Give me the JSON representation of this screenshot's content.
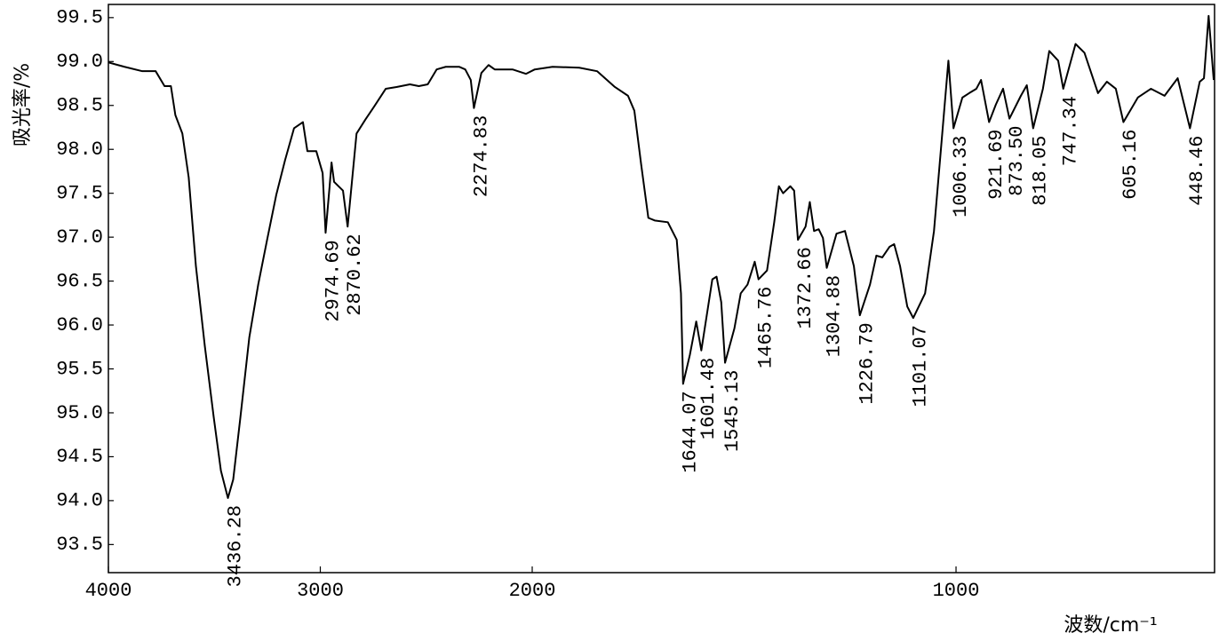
{
  "chart_data": {
    "type": "line",
    "color": "#000000",
    "xlabel": "波数/cm⁻¹",
    "ylabel": "吸光率/%",
    "xlim": [
      4000,
      390
    ],
    "x_scale": {
      "break": 2000,
      "factor": 2
    },
    "ylim": [
      93.18,
      99.65
    ],
    "xticks": [
      4000,
      3000,
      2000,
      1000
    ],
    "yticks": [
      93.5,
      {
        "value": 94,
        "label": "94.0"
      },
      94.5,
      {
        "value": 95,
        "label": "95.0"
      },
      95.5,
      {
        "value": 96,
        "label": "96.0"
      },
      96.5,
      {
        "value": 97,
        "label": "97.0"
      },
      97.5,
      {
        "value": 98,
        "label": "98.0"
      },
      98.5,
      {
        "value": 99,
        "label": "99.0"
      },
      99.5
    ],
    "x": [
      4000,
      3924,
      3840,
      3777,
      3735,
      3705,
      3684,
      3651,
      3621,
      3587,
      3545,
      3503,
      3469,
      3436,
      3411,
      3377,
      3335,
      3293,
      3251,
      3208,
      3166,
      3124,
      3082,
      3061,
      3019,
      2989,
      2975,
      2956,
      2947,
      2935,
      2893,
      2871,
      2829,
      2787,
      2745,
      2691,
      2640,
      2577,
      2535,
      2493,
      2451,
      2408,
      2345,
      2316,
      2290,
      2275,
      2240,
      2206,
      2177,
      2093,
      2029,
      1994,
      1952,
      1889,
      1847,
      1805,
      1774,
      1759,
      1743,
      1726,
      1711,
      1680,
      1659,
      1649,
      1644,
      1628,
      1613,
      1601,
      1575,
      1565,
      1554,
      1545,
      1523,
      1508,
      1492,
      1475,
      1466,
      1446,
      1429,
      1418,
      1408,
      1391,
      1382,
      1373,
      1355,
      1345,
      1335,
      1324,
      1314,
      1305,
      1282,
      1262,
      1241,
      1227,
      1203,
      1188,
      1174,
      1157,
      1146,
      1132,
      1115,
      1101,
      1073,
      1052,
      1036,
      1018,
      1006,
      985,
      969,
      952,
      941,
      922,
      906,
      889,
      874,
      847,
      833,
      818,
      795,
      780,
      759,
      747,
      718,
      697,
      665,
      644,
      623,
      605,
      571,
      540,
      508,
      477,
      448,
      425,
      415,
      404,
      392
    ],
    "values": [
      98.99,
      98.94,
      98.89,
      98.89,
      98.72,
      98.72,
      98.39,
      98.18,
      97.68,
      96.67,
      95.76,
      94.95,
      94.34,
      94.03,
      94.24,
      94.95,
      95.86,
      96.46,
      96.97,
      97.48,
      97.88,
      98.24,
      98.31,
      97.98,
      97.98,
      97.73,
      97.05,
      97.58,
      97.85,
      97.63,
      97.53,
      97.12,
      98.18,
      98.34,
      98.49,
      98.69,
      98.71,
      98.74,
      98.72,
      98.74,
      98.91,
      98.94,
      98.94,
      98.91,
      98.79,
      98.47,
      98.87,
      98.96,
      98.91,
      98.91,
      98.86,
      98.91,
      98.94,
      98.93,
      98.89,
      98.71,
      98.61,
      98.44,
      97.83,
      97.22,
      97.19,
      97.17,
      96.97,
      96.36,
      95.33,
      95.66,
      96.04,
      95.71,
      96.52,
      96.55,
      96.26,
      95.57,
      95.96,
      96.36,
      96.46,
      96.72,
      96.52,
      96.62,
      97.17,
      97.58,
      97.5,
      97.58,
      97.53,
      96.97,
      97.12,
      97.4,
      97.07,
      97.09,
      96.99,
      96.65,
      97.04,
      97.07,
      96.67,
      96.11,
      96.46,
      96.79,
      96.77,
      96.89,
      96.92,
      96.67,
      96.21,
      96.08,
      96.36,
      97.07,
      97.98,
      99.01,
      98.24,
      98.59,
      98.64,
      98.69,
      98.79,
      98.31,
      98.51,
      98.69,
      98.35,
      98.61,
      98.73,
      98.24,
      98.69,
      99.12,
      99.01,
      98.69,
      99.2,
      99.1,
      98.64,
      98.77,
      98.69,
      98.31,
      98.59,
      98.69,
      98.61,
      98.81,
      98.24,
      98.77,
      98.81,
      99.52,
      98.79
    ],
    "annotations": [
      {
        "text": "3436.28",
        "x": 3436.28,
        "y": 94.03
      },
      {
        "text": "2974.69",
        "x": 2974.69,
        "y": 97.05
      },
      {
        "text": "2870.62",
        "x": 2870.62,
        "y": 97.12
      },
      {
        "text": "2274.83",
        "x": 2274.83,
        "y": 98.47
      },
      {
        "text": "1644.07",
        "x": 1644.07,
        "y": 95.33
      },
      {
        "text": "1601.48",
        "x": 1601.48,
        "y": 95.71
      },
      {
        "text": "1545.13",
        "x": 1545.13,
        "y": 95.57
      },
      {
        "text": "1465.76",
        "x": 1465.76,
        "y": 96.52
      },
      {
        "text": "1372.66",
        "x": 1372.66,
        "y": 96.97
      },
      {
        "text": "1304.88",
        "x": 1304.88,
        "y": 96.65
      },
      {
        "text": "1226.79",
        "x": 1226.79,
        "y": 96.11
      },
      {
        "text": "1101.07",
        "x": 1101.07,
        "y": 96.08
      },
      {
        "text": "1006.33",
        "x": 1006.33,
        "y": 98.24
      },
      {
        "text": "921.69",
        "x": 921.69,
        "y": 98.31
      },
      {
        "text": "873.50",
        "x": 873.5,
        "y": 98.35
      },
      {
        "text": "818.05",
        "x": 818.05,
        "y": 98.24
      },
      {
        "text": "747.34",
        "x": 747.34,
        "y": 98.69
      },
      {
        "text": "605.16",
        "x": 605.16,
        "y": 98.31
      },
      {
        "text": "448.46",
        "x": 448.46,
        "y": 98.24
      }
    ]
  }
}
